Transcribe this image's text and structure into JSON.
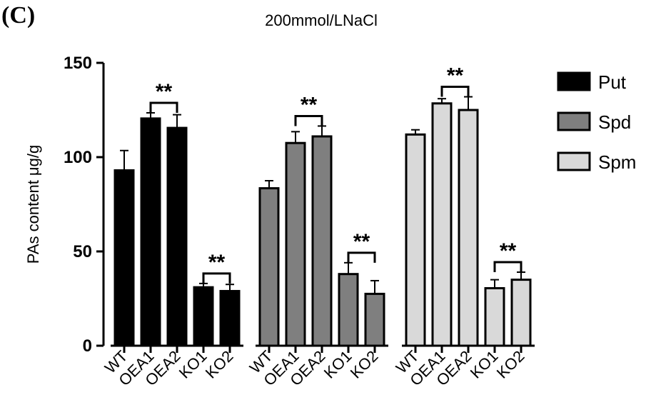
{
  "panel_label": "(C)",
  "chart_data": {
    "type": "bar",
    "title": "200mmol/LNaCl",
    "xlabel": "",
    "ylabel": "PAs content μg/g",
    "ylim": [
      0,
      150
    ],
    "yticks": [
      0,
      50,
      100,
      150
    ],
    "categories": [
      "WT",
      "OEA1",
      "OEA2",
      "KO1",
      "KO2"
    ],
    "series": [
      {
        "name": "Put",
        "color": "#000000",
        "values": [
          93,
          120.5,
          115.5,
          31,
          29
        ],
        "errors": [
          10.5,
          3,
          7,
          2,
          3.5
        ]
      },
      {
        "name": "Spd",
        "color": "#7f7f7f",
        "values": [
          83.5,
          107.5,
          111,
          38,
          27.5
        ],
        "errors": [
          4,
          6,
          5.5,
          6,
          7
        ]
      },
      {
        "name": "Spm",
        "color": "#d9d9d9",
        "values": [
          112,
          128.5,
          125,
          30.5,
          35
        ],
        "errors": [
          2.5,
          2.5,
          7,
          4.5,
          4
        ]
      }
    ],
    "significance": [
      {
        "series": 0,
        "from": 1,
        "to": 2,
        "label": "**"
      },
      {
        "series": 0,
        "from": 3,
        "to": 4,
        "label": "**"
      },
      {
        "series": 1,
        "from": 1,
        "to": 2,
        "label": "**"
      },
      {
        "series": 1,
        "from": 3,
        "to": 4,
        "label": "**"
      },
      {
        "series": 2,
        "from": 1,
        "to": 2,
        "label": "**"
      },
      {
        "series": 2,
        "from": 3,
        "to": 4,
        "label": "**"
      }
    ],
    "legend_position": "right"
  }
}
